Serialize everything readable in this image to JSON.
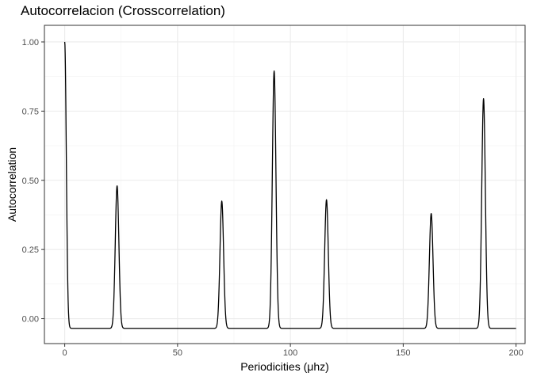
{
  "chart_data": {
    "type": "line",
    "title": "Autocorrelacion (Crosscorrelation)",
    "xlabel": "Periodicities (μhz)",
    "ylabel": "Autocorrelation",
    "xlim": [
      -9,
      204
    ],
    "ylim": [
      -0.09,
      1.06
    ],
    "x_ticks": [
      0,
      50,
      100,
      150,
      200
    ],
    "y_ticks": [
      0.0,
      0.25,
      0.5,
      0.75,
      1.0
    ],
    "x_tick_labels": [
      "0",
      "50",
      "100",
      "150",
      "200"
    ],
    "y_tick_labels": [
      "0.00",
      "0.25",
      "0.50",
      "0.75",
      "1.00"
    ],
    "grid": true,
    "line_color": "#000000",
    "baseline": -0.035,
    "peaks": [
      {
        "x": 0,
        "y": 1.0
      },
      {
        "x": 23.2,
        "y": 0.48
      },
      {
        "x": 69.6,
        "y": 0.425
      },
      {
        "x": 92.8,
        "y": 0.895
      },
      {
        "x": 116,
        "y": 0.43
      },
      {
        "x": 162.4,
        "y": 0.38
      },
      {
        "x": 185.6,
        "y": 0.795
      }
    ],
    "x_end": 200
  }
}
